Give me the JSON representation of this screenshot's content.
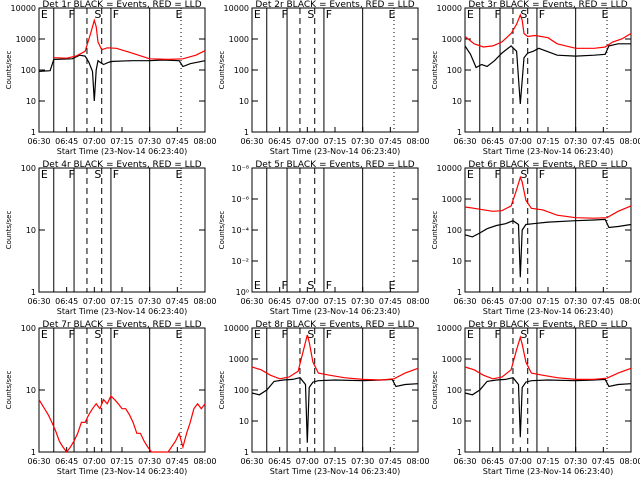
{
  "colors": {
    "events": "#000000",
    "lld": "#ff0000",
    "axis": "#000000"
  },
  "xlabel": "Start Time (23-Nov-14 06:23:40)",
  "ylabel": "Counts/sec",
  "xlim": [
    "06:30",
    "08:00"
  ],
  "x_ticks": [
    "06:30",
    "06:45",
    "07:00",
    "07:15",
    "07:30",
    "07:45",
    "08:00"
  ],
  "event_markers": {
    "letters": [
      "E",
      "F",
      "S",
      "F",
      "E"
    ],
    "solid": [
      "06:38",
      "06:49",
      "07:09",
      "07:30"
    ],
    "dashed": [
      "06:56",
      "07:04"
    ],
    "dotted": [
      "07:47"
    ],
    "letter_times": [
      "06:31",
      "06:46",
      "07:00",
      "07:10",
      "07:44"
    ]
  },
  "chart_data": [
    {
      "type": "line",
      "title": "Det 1r BLACK = Events, RED = LLD",
      "ylim": [
        1,
        10000
      ],
      "yscale": "log",
      "y_ticks": [
        "1",
        "10",
        "100",
        "1000",
        "10000"
      ],
      "series": [
        {
          "name": "Events",
          "color": "#000000",
          "x": [
            "06:30",
            "06:36",
            "06:38",
            "06:48",
            "06:52",
            "06:55",
            "06:57",
            "06:59",
            "07:00",
            "07:01",
            "07:02",
            "07:03",
            "07:05",
            "07:08",
            "07:10",
            "07:20",
            "07:30",
            "07:37",
            "07:46",
            "07:48",
            "07:52",
            "08:00"
          ],
          "y": [
            90,
            95,
            220,
            230,
            300,
            280,
            180,
            90,
            10,
            100,
            200,
            180,
            150,
            180,
            190,
            200,
            200,
            210,
            200,
            130,
            160,
            200
          ]
        },
        {
          "name": "LLD",
          "color": "#ff0000",
          "x": [
            "06:38",
            "06:45",
            "06:50",
            "06:55",
            "06:58",
            "07:00",
            "07:01",
            "07:02",
            "07:04",
            "07:07",
            "07:12",
            "07:20",
            "07:30",
            "07:40",
            "07:48",
            "07:55",
            "08:00"
          ],
          "y": [
            250,
            240,
            280,
            400,
            1500,
            4000,
            2500,
            800,
            450,
            520,
            500,
            360,
            230,
            220,
            230,
            300,
            420
          ]
        }
      ]
    },
    {
      "type": "line",
      "title": "Det 2r BLACK = Events, RED = LLD",
      "ylim": [
        1,
        10000
      ],
      "yscale": "log",
      "y_ticks": [
        "1",
        "10",
        "100",
        "1000",
        "10000"
      ],
      "series": []
    },
    {
      "type": "line",
      "title": "Det 3r BLACK = Events, RED = LLD",
      "ylim": [
        1,
        10000
      ],
      "yscale": "log",
      "y_ticks": [
        "1",
        "10",
        "100",
        "1000",
        "10000"
      ],
      "series": [
        {
          "name": "Events",
          "color": "#000000",
          "x": [
            "06:30",
            "06:33",
            "06:36",
            "06:39",
            "06:42",
            "06:46",
            "06:50",
            "06:55",
            "06:58",
            "07:00",
            "07:02",
            "07:04",
            "07:07",
            "07:10",
            "07:20",
            "07:30",
            "07:40",
            "07:46",
            "07:48",
            "07:53",
            "08:00"
          ],
          "y": [
            600,
            320,
            120,
            150,
            130,
            200,
            350,
            600,
            400,
            8,
            250,
            350,
            400,
            500,
            300,
            280,
            300,
            320,
            600,
            700,
            700
          ]
        },
        {
          "name": "LLD",
          "color": "#ff0000",
          "x": [
            "06:30",
            "06:35",
            "06:40",
            "06:45",
            "06:50",
            "06:55",
            "06:58",
            "07:00",
            "07:01",
            "07:02",
            "07:04",
            "07:08",
            "07:15",
            "07:20",
            "07:30",
            "07:40",
            "07:46",
            "07:50",
            "07:55",
            "08:00"
          ],
          "y": [
            1200,
            700,
            550,
            600,
            800,
            1500,
            3000,
            6000,
            4000,
            1500,
            1200,
            1300,
            1100,
            700,
            500,
            500,
            550,
            800,
            1000,
            1500
          ]
        }
      ]
    },
    {
      "type": "line",
      "title": "Det 4r BLACK = Events, RED = LLD",
      "ylim": [
        1,
        100
      ],
      "yscale": "log",
      "y_ticks": [
        "1",
        "10",
        "100"
      ],
      "series": []
    },
    {
      "type": "line",
      "title": "Det 5r BLACK = Events, RED = LLD",
      "ylim": [
        1e-09,
        1
      ],
      "yscale": "log",
      "y_ticks": [
        "10⁰",
        "10⁻²",
        "10⁻⁴",
        "10⁻⁶",
        "10⁻⁸"
      ],
      "series": []
    },
    {
      "type": "line",
      "title": "Det 6r BLACK = Events, RED = LLD",
      "ylim": [
        1,
        10000
      ],
      "yscale": "log",
      "y_ticks": [
        "1",
        "10",
        "100",
        "1000",
        "10000"
      ],
      "series": [
        {
          "name": "Events",
          "color": "#000000",
          "x": [
            "06:30",
            "06:34",
            "06:38",
            "06:42",
            "06:47",
            "06:52",
            "06:56",
            "06:59",
            "07:00",
            "07:01",
            "07:03",
            "07:07",
            "07:15",
            "07:30",
            "07:40",
            "07:46",
            "07:48",
            "07:53",
            "08:00"
          ],
          "y": [
            70,
            60,
            80,
            110,
            140,
            160,
            200,
            150,
            3,
            100,
            150,
            160,
            180,
            200,
            210,
            220,
            120,
            130,
            150
          ]
        },
        {
          "name": "LLD",
          "color": "#ff0000",
          "x": [
            "06:30",
            "06:35",
            "06:40",
            "06:45",
            "06:50",
            "06:55",
            "06:58",
            "07:00",
            "07:01",
            "07:03",
            "07:06",
            "07:12",
            "07:20",
            "07:30",
            "07:40",
            "07:47",
            "07:53",
            "08:00"
          ],
          "y": [
            550,
            500,
            450,
            400,
            420,
            600,
            2000,
            5000,
            3500,
            900,
            500,
            450,
            300,
            250,
            240,
            250,
            400,
            600
          ]
        }
      ]
    },
    {
      "type": "line",
      "title": "Det 7r BLACK = Events, RED = LLD",
      "ylim": [
        1,
        100
      ],
      "yscale": "log",
      "y_ticks": [
        "1",
        "10",
        "100"
      ],
      "series": [
        {
          "name": "LLD",
          "color": "#ff0000",
          "x": [
            "06:30",
            "06:33",
            "06:35",
            "06:37",
            "06:39",
            "06:41",
            "06:43",
            "06:45",
            "06:47",
            "06:49",
            "06:51",
            "06:53",
            "06:55",
            "06:57",
            "06:59",
            "07:01",
            "07:03",
            "07:05",
            "07:07",
            "07:09",
            "07:11",
            "07:13",
            "07:15",
            "07:17",
            "07:19",
            "07:21",
            "07:23",
            "07:25",
            "07:27",
            "07:29",
            "07:31",
            "07:35",
            "07:40",
            "07:44",
            "07:46",
            "07:48",
            "07:50",
            "07:52",
            "07:54",
            "07:56",
            "07:58",
            "08:00"
          ],
          "y": [
            7,
            5,
            4,
            3,
            2.2,
            1.5,
            1.2,
            1,
            1.2,
            1.5,
            2,
            3,
            3,
            4,
            5,
            6,
            5,
            7,
            6,
            8,
            7,
            6,
            5,
            5,
            4,
            3,
            2,
            2,
            1.5,
            1.2,
            1,
            1,
            1,
            1.5,
            2,
            1.2,
            2,
            3,
            5,
            6,
            5,
            6
          ]
        }
      ]
    },
    {
      "type": "line",
      "title": "Det 8r BLACK = Events, RED = LLD",
      "ylim": [
        1,
        10000
      ],
      "yscale": "log",
      "y_ticks": [
        "1",
        "10",
        "100",
        "1000",
        "10000"
      ],
      "series": [
        {
          "name": "Events",
          "color": "#000000",
          "x": [
            "06:30",
            "06:34",
            "06:38",
            "06:42",
            "06:47",
            "06:52",
            "06:56",
            "06:59",
            "07:00",
            "07:01",
            "07:03",
            "07:06",
            "07:15",
            "07:30",
            "07:40",
            "07:46",
            "07:48",
            "07:53",
            "08:00"
          ],
          "y": [
            80,
            70,
            100,
            190,
            210,
            220,
            250,
            150,
            2,
            120,
            180,
            200,
            210,
            200,
            210,
            220,
            130,
            150,
            160
          ]
        },
        {
          "name": "LLD",
          "color": "#ff0000",
          "x": [
            "06:30",
            "06:35",
            "06:40",
            "06:45",
            "06:50",
            "06:55",
            "06:58",
            "07:00",
            "07:01",
            "07:03",
            "07:06",
            "07:12",
            "07:20",
            "07:30",
            "07:40",
            "07:47",
            "07:53",
            "08:00"
          ],
          "y": [
            550,
            450,
            300,
            230,
            260,
            400,
            2000,
            6000,
            3500,
            800,
            350,
            300,
            250,
            220,
            210,
            230,
            350,
            500
          ]
        }
      ]
    },
    {
      "type": "line",
      "title": "Det 9r BLACK = Events, RED = LLD",
      "ylim": [
        1,
        10000
      ],
      "yscale": "log",
      "y_ticks": [
        "1",
        "10",
        "100",
        "1000",
        "10000"
      ],
      "series": [
        {
          "name": "Events",
          "color": "#000000",
          "x": [
            "06:30",
            "06:34",
            "06:38",
            "06:42",
            "06:47",
            "06:52",
            "06:56",
            "06:59",
            "07:00",
            "07:01",
            "07:03",
            "07:06",
            "07:15",
            "07:30",
            "07:40",
            "07:46",
            "07:48",
            "07:53",
            "08:00"
          ],
          "y": [
            80,
            70,
            100,
            190,
            210,
            220,
            250,
            150,
            3,
            120,
            180,
            200,
            210,
            200,
            210,
            220,
            130,
            150,
            160
          ]
        },
        {
          "name": "LLD",
          "color": "#ff0000",
          "x": [
            "06:30",
            "06:35",
            "06:40",
            "06:45",
            "06:50",
            "06:55",
            "06:58",
            "07:00",
            "07:01",
            "07:03",
            "07:06",
            "07:12",
            "07:20",
            "07:30",
            "07:40",
            "07:47",
            "07:53",
            "08:00"
          ],
          "y": [
            550,
            450,
            300,
            230,
            260,
            450,
            2000,
            5000,
            3000,
            800,
            350,
            300,
            250,
            220,
            220,
            240,
            350,
            500
          ]
        }
      ]
    }
  ]
}
